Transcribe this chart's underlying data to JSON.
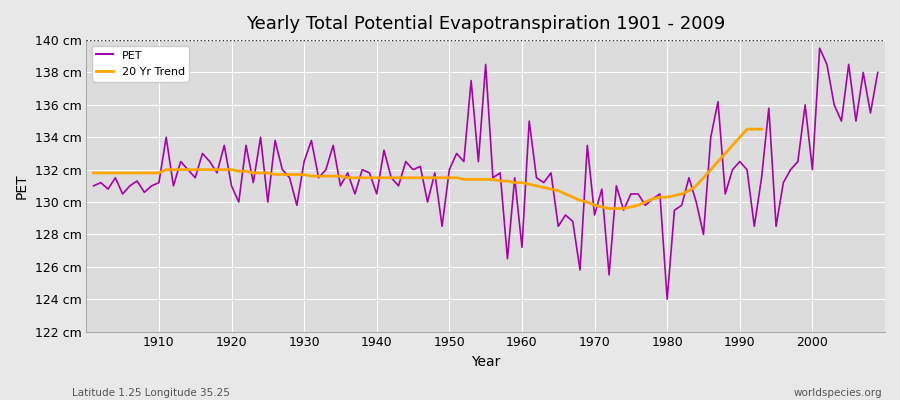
{
  "title": "Yearly Total Potential Evapotranspiration 1901 - 2009",
  "xlabel": "Year",
  "ylabel": "PET",
  "footer_left": "Latitude 1.25 Longitude 35.25",
  "footer_right": "worldspecies.org",
  "background_color": "#e8e8e8",
  "plot_bg_color": "#dcdcdc",
  "pet_color": "#aa00aa",
  "trend_color": "#ffa500",
  "ylim": [
    122,
    140
  ],
  "yticks": [
    122,
    124,
    126,
    128,
    130,
    132,
    134,
    136,
    138,
    140
  ],
  "years": [
    1901,
    1902,
    1903,
    1904,
    1905,
    1906,
    1907,
    1908,
    1909,
    1910,
    1911,
    1912,
    1913,
    1914,
    1915,
    1916,
    1917,
    1918,
    1919,
    1920,
    1921,
    1922,
    1923,
    1924,
    1925,
    1926,
    1927,
    1928,
    1929,
    1930,
    1931,
    1932,
    1933,
    1934,
    1935,
    1936,
    1937,
    1938,
    1939,
    1940,
    1941,
    1942,
    1943,
    1944,
    1945,
    1946,
    1947,
    1948,
    1949,
    1950,
    1951,
    1952,
    1953,
    1954,
    1955,
    1956,
    1957,
    1958,
    1959,
    1960,
    1961,
    1962,
    1963,
    1964,
    1965,
    1966,
    1967,
    1968,
    1969,
    1970,
    1971,
    1972,
    1973,
    1974,
    1975,
    1976,
    1977,
    1978,
    1979,
    1980,
    1981,
    1982,
    1983,
    1984,
    1985,
    1986,
    1987,
    1988,
    1989,
    1990,
    1991,
    1992,
    1993,
    1994,
    1995,
    1996,
    1997,
    1998,
    1999,
    2000,
    2001,
    2002,
    2003,
    2004,
    2005,
    2006,
    2007,
    2008,
    2009
  ],
  "pet_values": [
    131.0,
    131.2,
    130.8,
    131.5,
    130.5,
    131.0,
    131.3,
    130.6,
    131.0,
    131.2,
    134.0,
    131.0,
    132.5,
    132.0,
    131.5,
    133.0,
    132.5,
    131.8,
    133.5,
    131.0,
    130.0,
    133.5,
    131.2,
    134.0,
    130.0,
    133.8,
    132.0,
    131.5,
    129.8,
    132.5,
    133.8,
    131.5,
    132.0,
    133.5,
    131.0,
    131.8,
    130.5,
    132.0,
    131.8,
    130.5,
    133.2,
    131.5,
    131.0,
    132.5,
    132.0,
    132.2,
    130.0,
    131.8,
    128.5,
    132.0,
    133.0,
    132.5,
    137.5,
    132.5,
    138.5,
    131.5,
    131.8,
    126.5,
    131.5,
    127.2,
    135.0,
    131.5,
    131.2,
    131.8,
    128.5,
    129.2,
    128.8,
    125.8,
    133.5,
    129.2,
    130.8,
    125.5,
    131.0,
    129.5,
    130.5,
    130.5,
    129.8,
    130.2,
    130.5,
    124.0,
    129.5,
    129.8,
    131.5,
    130.0,
    128.0,
    134.0,
    136.2,
    130.5,
    132.0,
    132.5,
    132.0,
    128.5,
    131.5,
    135.8,
    128.5,
    131.2,
    132.0,
    132.5,
    136.0,
    132.0,
    139.5,
    138.5,
    136.0,
    135.0,
    138.5,
    135.0,
    138.0,
    135.5,
    138.0
  ],
  "trend_values": [
    131.8,
    131.8,
    131.8,
    131.8,
    131.8,
    131.8,
    131.8,
    131.8,
    131.8,
    131.8,
    132.0,
    132.0,
    132.0,
    132.0,
    132.0,
    132.0,
    132.0,
    132.0,
    132.0,
    132.0,
    131.9,
    131.9,
    131.8,
    131.8,
    131.8,
    131.7,
    131.7,
    131.7,
    131.7,
    131.7,
    131.6,
    131.6,
    131.6,
    131.6,
    131.6,
    131.5,
    131.5,
    131.5,
    131.5,
    131.5,
    131.5,
    131.5,
    131.5,
    131.5,
    131.5,
    131.5,
    131.5,
    131.5,
    131.5,
    131.5,
    131.5,
    131.4,
    131.4,
    131.4,
    131.4,
    131.4,
    131.3,
    131.3,
    131.2,
    131.2,
    131.1,
    131.0,
    130.9,
    130.8,
    130.7,
    130.5,
    130.3,
    130.1,
    130.0,
    129.8,
    129.7,
    129.6,
    129.6,
    129.6,
    129.7,
    129.8,
    130.0,
    130.2,
    130.3,
    130.3,
    130.4,
    130.5,
    130.7,
    131.0,
    131.5,
    132.0,
    132.5,
    133.0,
    133.5,
    134.0,
    134.5,
    134.5,
    134.5,
    null,
    null,
    null,
    null,
    null,
    null,
    null,
    null,
    null,
    null,
    null,
    null,
    null,
    null,
    null,
    null
  ]
}
